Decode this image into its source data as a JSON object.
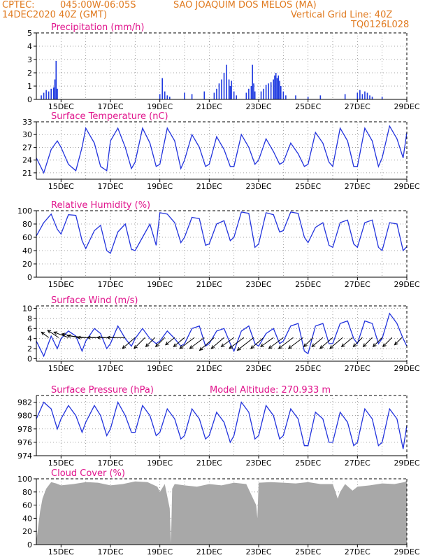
{
  "header": {
    "source": "CPTEC:",
    "coords": "045:00W-06:05S",
    "location": "SAO JOAQUIM DOS MELOS (MA)",
    "datetime": "14DEC2020 40Z (GMT)",
    "grid_note": "Vertical Grid Line: 40Z",
    "model_code": "TQ0126L028"
  },
  "colors": {
    "header": "#e07a1f",
    "title": "#e0148c",
    "line": "#2233dd",
    "bar": "#1f3ae0",
    "cloud": "#a8a8a8",
    "grid": "#888888"
  },
  "x_axis": {
    "ticks": [
      {
        "day": 15,
        "label": "15DEC"
      },
      {
        "day": 17,
        "label": "17DEC"
      },
      {
        "day": 19,
        "label": "19DEC"
      },
      {
        "day": 21,
        "label": "21DEC"
      },
      {
        "day": 23,
        "label": "23DEC"
      },
      {
        "day": 25,
        "label": "25DEC"
      },
      {
        "day": 27,
        "label": "27DEC"
      },
      {
        "day": 29,
        "label": "29DEC"
      }
    ],
    "range_days": [
      14.0,
      29.0
    ]
  },
  "chart_data": [
    {
      "type": "bar",
      "title": "Precipitation (mm/h)",
      "ylim": [
        0,
        5
      ],
      "yticks": [
        0,
        1,
        2,
        3,
        4,
        5
      ],
      "x": [
        14.2,
        14.3,
        14.4,
        14.5,
        14.6,
        14.7,
        14.75,
        14.8,
        14.85,
        19.0,
        19.1,
        19.2,
        19.3,
        19.4,
        20.0,
        20.3,
        20.8,
        21.2,
        21.3,
        21.4,
        21.5,
        21.6,
        21.7,
        21.8,
        21.85,
        21.9,
        22.0,
        22.1,
        22.5,
        22.6,
        22.7,
        22.75,
        22.8,
        22.85,
        23.1,
        23.2,
        23.3,
        23.4,
        23.5,
        23.6,
        23.65,
        23.7,
        23.75,
        23.8,
        23.85,
        23.9,
        24.0,
        24.1,
        24.5,
        25.0,
        25.5,
        26.5,
        27.0,
        27.1,
        27.2,
        27.3,
        27.4,
        27.5,
        27.6,
        28.0
      ],
      "values": [
        0.3,
        0.5,
        0.7,
        0.6,
        0.8,
        0.9,
        1.5,
        2.9,
        0.8,
        0.4,
        1.6,
        0.6,
        0.3,
        0.2,
        0.5,
        0.4,
        0.6,
        0.5,
        0.8,
        1.2,
        1.5,
        2.0,
        2.6,
        1.5,
        1.0,
        1.4,
        0.6,
        0.3,
        0.5,
        0.8,
        1.0,
        2.6,
        1.2,
        0.6,
        0.6,
        0.8,
        1.1,
        1.2,
        1.3,
        1.5,
        1.8,
        2.0,
        1.6,
        1.8,
        1.4,
        1.0,
        0.6,
        0.3,
        0.3,
        0.2,
        0.3,
        0.4,
        0.5,
        0.7,
        0.4,
        0.6,
        0.5,
        0.3,
        0.2,
        0.2
      ]
    },
    {
      "type": "line",
      "title": "Surface Temperature (nC)",
      "ylim": [
        19.5,
        33
      ],
      "yticks": [
        21,
        24,
        27,
        30,
        33
      ],
      "x": [
        14.0,
        14.3,
        14.6,
        14.85,
        15.0,
        15.3,
        15.6,
        15.85,
        16.0,
        16.35,
        16.6,
        16.85,
        17.0,
        17.3,
        17.6,
        17.85,
        18.0,
        18.3,
        18.6,
        18.85,
        19.0,
        19.3,
        19.6,
        19.85,
        20.0,
        20.3,
        20.6,
        20.85,
        21.0,
        21.3,
        21.6,
        21.85,
        22.0,
        22.3,
        22.6,
        22.85,
        23.0,
        23.3,
        23.6,
        23.85,
        24.0,
        24.3,
        24.6,
        24.85,
        25.0,
        25.3,
        25.6,
        25.85,
        26.0,
        26.3,
        26.6,
        26.85,
        27.0,
        27.3,
        27.6,
        27.85,
        28.0,
        28.3,
        28.6,
        28.85,
        29.0
      ],
      "values": [
        24.5,
        21.0,
        26.5,
        28.5,
        27.0,
        23.0,
        21.5,
        27.0,
        31.5,
        28.0,
        22.5,
        21.5,
        28.5,
        31.5,
        27.0,
        22.0,
        23.5,
        31.5,
        28.0,
        22.5,
        23.0,
        31.5,
        28.5,
        22.0,
        24.0,
        30.0,
        27.0,
        22.5,
        23.0,
        29.5,
        26.5,
        22.5,
        22.5,
        30.0,
        27.0,
        23.0,
        24.0,
        29.0,
        26.0,
        23.0,
        23.5,
        28.0,
        25.5,
        22.5,
        23.0,
        30.5,
        28.0,
        23.5,
        22.5,
        31.5,
        28.5,
        22.5,
        22.5,
        31.5,
        28.5,
        22.5,
        24.5,
        32.0,
        29.0,
        24.5,
        30.5
      ]
    },
    {
      "type": "line",
      "title": "Relative Humidity (%)",
      "ylim": [
        0,
        100
      ],
      "yticks": [
        0,
        20,
        40,
        60,
        80,
        100
      ],
      "x": [
        14.0,
        14.3,
        14.6,
        14.85,
        15.0,
        15.3,
        15.6,
        15.85,
        16.0,
        16.35,
        16.6,
        16.85,
        17.0,
        17.3,
        17.6,
        17.85,
        18.0,
        18.3,
        18.6,
        18.85,
        19.0,
        19.3,
        19.6,
        19.85,
        20.0,
        20.3,
        20.6,
        20.85,
        21.0,
        21.3,
        21.6,
        21.85,
        22.0,
        22.3,
        22.6,
        22.85,
        23.0,
        23.3,
        23.6,
        23.85,
        24.0,
        24.3,
        24.6,
        24.85,
        25.0,
        25.3,
        25.6,
        25.85,
        26.0,
        26.3,
        26.6,
        26.85,
        27.0,
        27.3,
        27.6,
        27.85,
        28.0,
        28.3,
        28.6,
        28.85,
        29.0
      ],
      "values": [
        62,
        82,
        95,
        72,
        65,
        94,
        93,
        55,
        43,
        70,
        78,
        40,
        36,
        68,
        80,
        42,
        40,
        60,
        80,
        48,
        97,
        95,
        82,
        52,
        60,
        90,
        88,
        48,
        50,
        80,
        85,
        55,
        60,
        98,
        96,
        45,
        50,
        97,
        94,
        68,
        70,
        98,
        96,
        60,
        52,
        75,
        82,
        48,
        45,
        82,
        86,
        50,
        45,
        82,
        86,
        45,
        40,
        82,
        80,
        40,
        46
      ]
    },
    {
      "type": "line",
      "title": "Surface Wind (m/s)",
      "ylim": [
        -0.5,
        10.5
      ],
      "yticks": [
        0,
        2,
        4,
        6,
        8,
        10
      ],
      "x": [
        14.0,
        14.3,
        14.6,
        14.85,
        15.0,
        15.3,
        15.6,
        15.85,
        16.0,
        16.35,
        16.6,
        16.85,
        17.0,
        17.3,
        17.6,
        17.85,
        18.0,
        18.3,
        18.6,
        18.85,
        19.0,
        19.3,
        19.6,
        19.85,
        20.0,
        20.3,
        20.6,
        20.85,
        21.0,
        21.3,
        21.6,
        21.85,
        22.0,
        22.3,
        22.6,
        22.85,
        23.0,
        23.3,
        23.6,
        23.85,
        24.0,
        24.3,
        24.6,
        24.85,
        25.0,
        25.3,
        25.6,
        25.85,
        26.0,
        26.3,
        26.6,
        26.85,
        27.0,
        27.3,
        27.6,
        27.85,
        28.0,
        28.3,
        28.6,
        28.85,
        29.0
      ],
      "values": [
        3.5,
        0.5,
        4.5,
        2.0,
        4.0,
        5.5,
        4.5,
        1.5,
        3.5,
        6.0,
        5.0,
        2.0,
        3.0,
        6.5,
        4.0,
        2.5,
        4.0,
        6.0,
        4.0,
        3.0,
        3.5,
        5.5,
        4.0,
        2.5,
        3.0,
        6.0,
        6.5,
        2.5,
        3.0,
        5.5,
        6.0,
        3.0,
        1.5,
        5.5,
        6.5,
        3.0,
        2.5,
        5.0,
        6.0,
        3.0,
        3.5,
        6.5,
        7.0,
        1.5,
        1.0,
        6.5,
        7.0,
        3.0,
        3.0,
        7.0,
        7.5,
        4.0,
        3.0,
        7.5,
        7.0,
        3.0,
        4.0,
        9.0,
        7.0,
        4.0,
        2.5
      ],
      "vectors": {
        "x": [
          14.5,
          14.9,
          15.3,
          15.7,
          16.0,
          16.4,
          16.8,
          17.2,
          17.6,
          18.0,
          18.4,
          18.8,
          19.2,
          19.6,
          20.0,
          20.4,
          20.8,
          21.2,
          21.6,
          22.0,
          22.4,
          22.8,
          23.2,
          23.6,
          24.0,
          24.4,
          24.8,
          25.2,
          25.6,
          26.0,
          26.4,
          26.8,
          27.2,
          27.6,
          28.0,
          28.4,
          28.8
        ],
        "u": [
          -0.4,
          -0.6,
          -0.8,
          -0.9,
          -1.0,
          -1.0,
          -1.0,
          -1.0,
          -1.0,
          -0.7,
          -0.6,
          -0.5,
          -0.5,
          -0.5,
          -0.6,
          -0.8,
          -0.8,
          -0.8,
          -0.7,
          -0.7,
          -0.8,
          -0.9,
          -0.7,
          -0.7,
          -0.8,
          -0.8,
          -0.8,
          -0.5,
          -0.6,
          -0.7,
          -0.7,
          -0.6,
          -0.5,
          -0.5,
          -0.5,
          -0.5,
          -0.4
        ],
        "v": [
          0.3,
          0.4,
          0.3,
          0.2,
          0.1,
          0.0,
          0.0,
          0.0,
          0.0,
          -0.6,
          -0.6,
          -0.5,
          -0.5,
          -0.4,
          -0.5,
          -0.6,
          -0.6,
          -0.7,
          -0.6,
          -0.5,
          -0.6,
          -0.7,
          -0.6,
          -0.5,
          -0.6,
          -0.6,
          -0.6,
          -0.5,
          -0.5,
          -0.6,
          -0.6,
          -0.5,
          -0.5,
          -0.5,
          -0.5,
          -0.5,
          -0.4
        ]
      }
    },
    {
      "type": "line",
      "title": "Surface Pressure (hPa)",
      "annotation": "Model Altitude: 270.933 m",
      "ylim": [
        974,
        983
      ],
      "yticks": [
        974,
        976,
        978,
        980,
        982
      ],
      "x": [
        14.0,
        14.3,
        14.6,
        14.85,
        15.0,
        15.3,
        15.6,
        15.85,
        16.0,
        16.35,
        16.6,
        16.85,
        17.0,
        17.3,
        17.6,
        17.85,
        18.0,
        18.3,
        18.6,
        18.85,
        19.0,
        19.3,
        19.6,
        19.85,
        20.0,
        20.3,
        20.6,
        20.85,
        21.0,
        21.3,
        21.6,
        21.85,
        22.0,
        22.3,
        22.6,
        22.85,
        23.0,
        23.3,
        23.6,
        23.85,
        24.0,
        24.3,
        24.6,
        24.85,
        25.0,
        25.3,
        25.6,
        25.85,
        26.0,
        26.3,
        26.6,
        26.85,
        27.0,
        27.3,
        27.6,
        27.85,
        28.0,
        28.3,
        28.6,
        28.85,
        29.0
      ],
      "values": [
        979.5,
        982.0,
        981.0,
        978.0,
        979.5,
        981.5,
        980.0,
        977.5,
        979.0,
        981.5,
        980.0,
        977.0,
        978.0,
        982.0,
        980.0,
        977.5,
        977.5,
        981.5,
        980.0,
        977.0,
        977.5,
        981.0,
        979.5,
        976.5,
        977.0,
        981.0,
        979.5,
        976.5,
        977.0,
        980.5,
        979.0,
        976.0,
        977.0,
        982.0,
        980.5,
        976.5,
        977.0,
        981.5,
        980.0,
        976.5,
        977.0,
        981.0,
        979.5,
        975.5,
        975.5,
        980.5,
        979.5,
        976.0,
        976.0,
        980.5,
        979.0,
        975.5,
        976.0,
        981.0,
        979.5,
        975.5,
        976.0,
        981.0,
        979.5,
        975.0,
        978.5
      ]
    },
    {
      "type": "area",
      "title": "Cloud Cover (%)",
      "ylim": [
        0,
        100
      ],
      "yticks": [
        0,
        20,
        40,
        60,
        80,
        100
      ],
      "x": [
        14.0,
        14.05,
        14.15,
        14.25,
        14.4,
        14.6,
        14.8,
        15.0,
        15.5,
        16.0,
        16.5,
        17.0,
        17.5,
        18.0,
        18.5,
        18.9,
        19.0,
        19.2,
        19.4,
        19.45,
        19.5,
        19.6,
        20.0,
        20.5,
        21.0,
        21.5,
        22.0,
        22.5,
        22.9,
        22.95,
        23.0,
        23.5,
        24.0,
        24.5,
        25.0,
        25.5,
        26.0,
        26.2,
        26.3,
        26.5,
        26.8,
        27.0,
        27.5,
        28.0,
        28.5,
        28.9,
        29.0
      ],
      "values": [
        5,
        20,
        50,
        70,
        85,
        95,
        93,
        90,
        92,
        95,
        94,
        90,
        92,
        96,
        95,
        88,
        80,
        92,
        55,
        2,
        85,
        92,
        90,
        88,
        92,
        90,
        94,
        92,
        60,
        40,
        94,
        95,
        94,
        93,
        95,
        92,
        92,
        70,
        80,
        92,
        82,
        88,
        90,
        93,
        92,
        95,
        97
      ]
    }
  ]
}
